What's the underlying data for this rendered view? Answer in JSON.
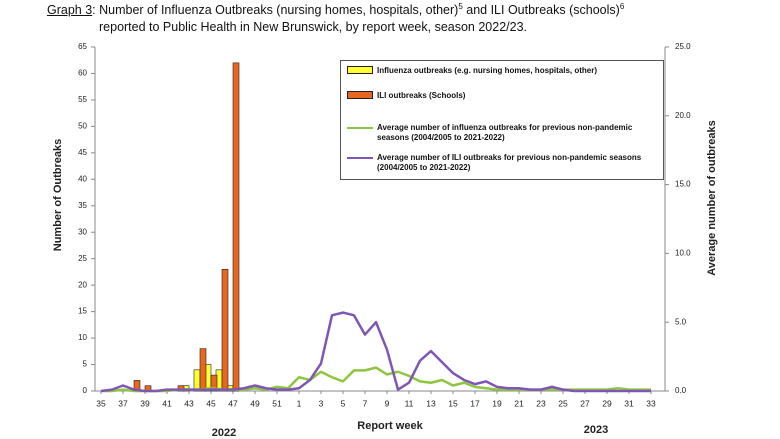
{
  "chart_data": {
    "type": "bar",
    "title": {
      "label": "Graph 3",
      "line1": ": Number of Influenza Outbreaks (nursing homes, hospitals, other)",
      "note1": "5",
      "mid": " and ILI Outbreaks (schools)",
      "note2": "6",
      "line2": "reported to Public Health in New Brunswick, by report week, season 2022/23."
    },
    "x_label": "Report week",
    "y_label": "Number of Outbreaks",
    "y2_label": "Average number of outbreaks",
    "annotations": [
      "2022",
      "2023"
    ],
    "categories": [
      "35",
      null,
      "37",
      null,
      "39",
      null,
      "41",
      null,
      "43",
      null,
      "45",
      null,
      "47",
      null,
      "49",
      null,
      "51",
      null,
      "1",
      null,
      "3",
      null,
      "5",
      null,
      "7",
      null,
      "9",
      null,
      "11",
      null,
      "13",
      null,
      "15",
      null,
      "17",
      null,
      "19",
      null,
      "21",
      null,
      "23",
      null,
      "25",
      null,
      "27",
      null,
      "29",
      null,
      "31",
      null,
      "33"
    ],
    "ylim": [
      0,
      65
    ],
    "yticks": [
      0,
      5,
      10,
      15,
      20,
      25,
      30,
      35,
      40,
      45,
      50,
      55,
      60,
      65
    ],
    "y2lim": [
      0,
      25
    ],
    "y2ticks": [
      {
        "value": 0,
        "label": "0.0"
      },
      {
        "value": 5,
        "label": "5.0"
      },
      {
        "value": 10,
        "label": "10.0"
      },
      {
        "value": 15,
        "label": "15.0"
      },
      {
        "value": 20,
        "label": "20.0"
      },
      {
        "value": 25,
        "label": "25.0"
      }
    ],
    "series": [
      {
        "name": "Influenza outbreaks (e.g. nursing homes, hospitals, other)",
        "type": "bar",
        "color": "#ffff33",
        "values": [
          0,
          0,
          0,
          0,
          0,
          0,
          0,
          0,
          1,
          4,
          5,
          4,
          1,
          0,
          0,
          0,
          0,
          0,
          0,
          0,
          0,
          0,
          0,
          0,
          0,
          0,
          0,
          0,
          0,
          0,
          0,
          0,
          0,
          0,
          0,
          0,
          0,
          0,
          0,
          0,
          0,
          0,
          0,
          0,
          0,
          0,
          0,
          0,
          0,
          0,
          0
        ]
      },
      {
        "name": "ILI outbreaks (Schools)",
        "type": "bar",
        "color": "#e8671e",
        "values": [
          0,
          0,
          0,
          2,
          1,
          0,
          0,
          1,
          0,
          8,
          3,
          23,
          62,
          0,
          0,
          0,
          0,
          0,
          0,
          0,
          0,
          0,
          0,
          0,
          0,
          0,
          0,
          0,
          0,
          0,
          0,
          0,
          0,
          0,
          0,
          0,
          0,
          0,
          0,
          0,
          0,
          0,
          0,
          0,
          0,
          0,
          0,
          0,
          0,
          0,
          0
        ]
      },
      {
        "name": "Average number of influenza outbreaks for previous non-pandemic seasons (2004/2005 to 2021-2022)",
        "type": "line",
        "axis": "y2",
        "color": "#8dc63f",
        "values": [
          0,
          0,
          0.1,
          0,
          0,
          0,
          0,
          0.1,
          0.1,
          0.1,
          0.2,
          0.1,
          0.1,
          0.1,
          0.2,
          0.1,
          0.3,
          0.2,
          1.0,
          0.8,
          1.4,
          1.0,
          0.7,
          1.5,
          1.5,
          1.7,
          1.2,
          1.4,
          1.1,
          0.7,
          0.6,
          0.8,
          0.4,
          0.6,
          0.3,
          0.2,
          0.1,
          0.1,
          0.1,
          0.1,
          0.1,
          0.1,
          0.1,
          0.1,
          0.1,
          0.1,
          0.1,
          0.2,
          0.1,
          0.1,
          0.1
        ]
      },
      {
        "name": "Average number of ILI outbreaks for previous non-pandemic seasons (2004/2005 to 2021-2022)",
        "type": "line",
        "axis": "y2",
        "color": "#7f56b5",
        "values": [
          0,
          0.1,
          0.4,
          0.1,
          0,
          0,
          0.1,
          0.1,
          0.1,
          0.1,
          0.1,
          0.1,
          0.1,
          0.2,
          0.4,
          0.2,
          0.1,
          0.1,
          0.2,
          0.8,
          2.0,
          5.5,
          5.7,
          5.5,
          4.1,
          5.0,
          3.0,
          0.1,
          0.6,
          2.2,
          2.9,
          2.1,
          1.3,
          0.8,
          0.5,
          0.7,
          0.3,
          0.2,
          0.2,
          0.1,
          0.1,
          0.3,
          0.1,
          0,
          0,
          0,
          0,
          0,
          0,
          0,
          0
        ]
      }
    ]
  }
}
